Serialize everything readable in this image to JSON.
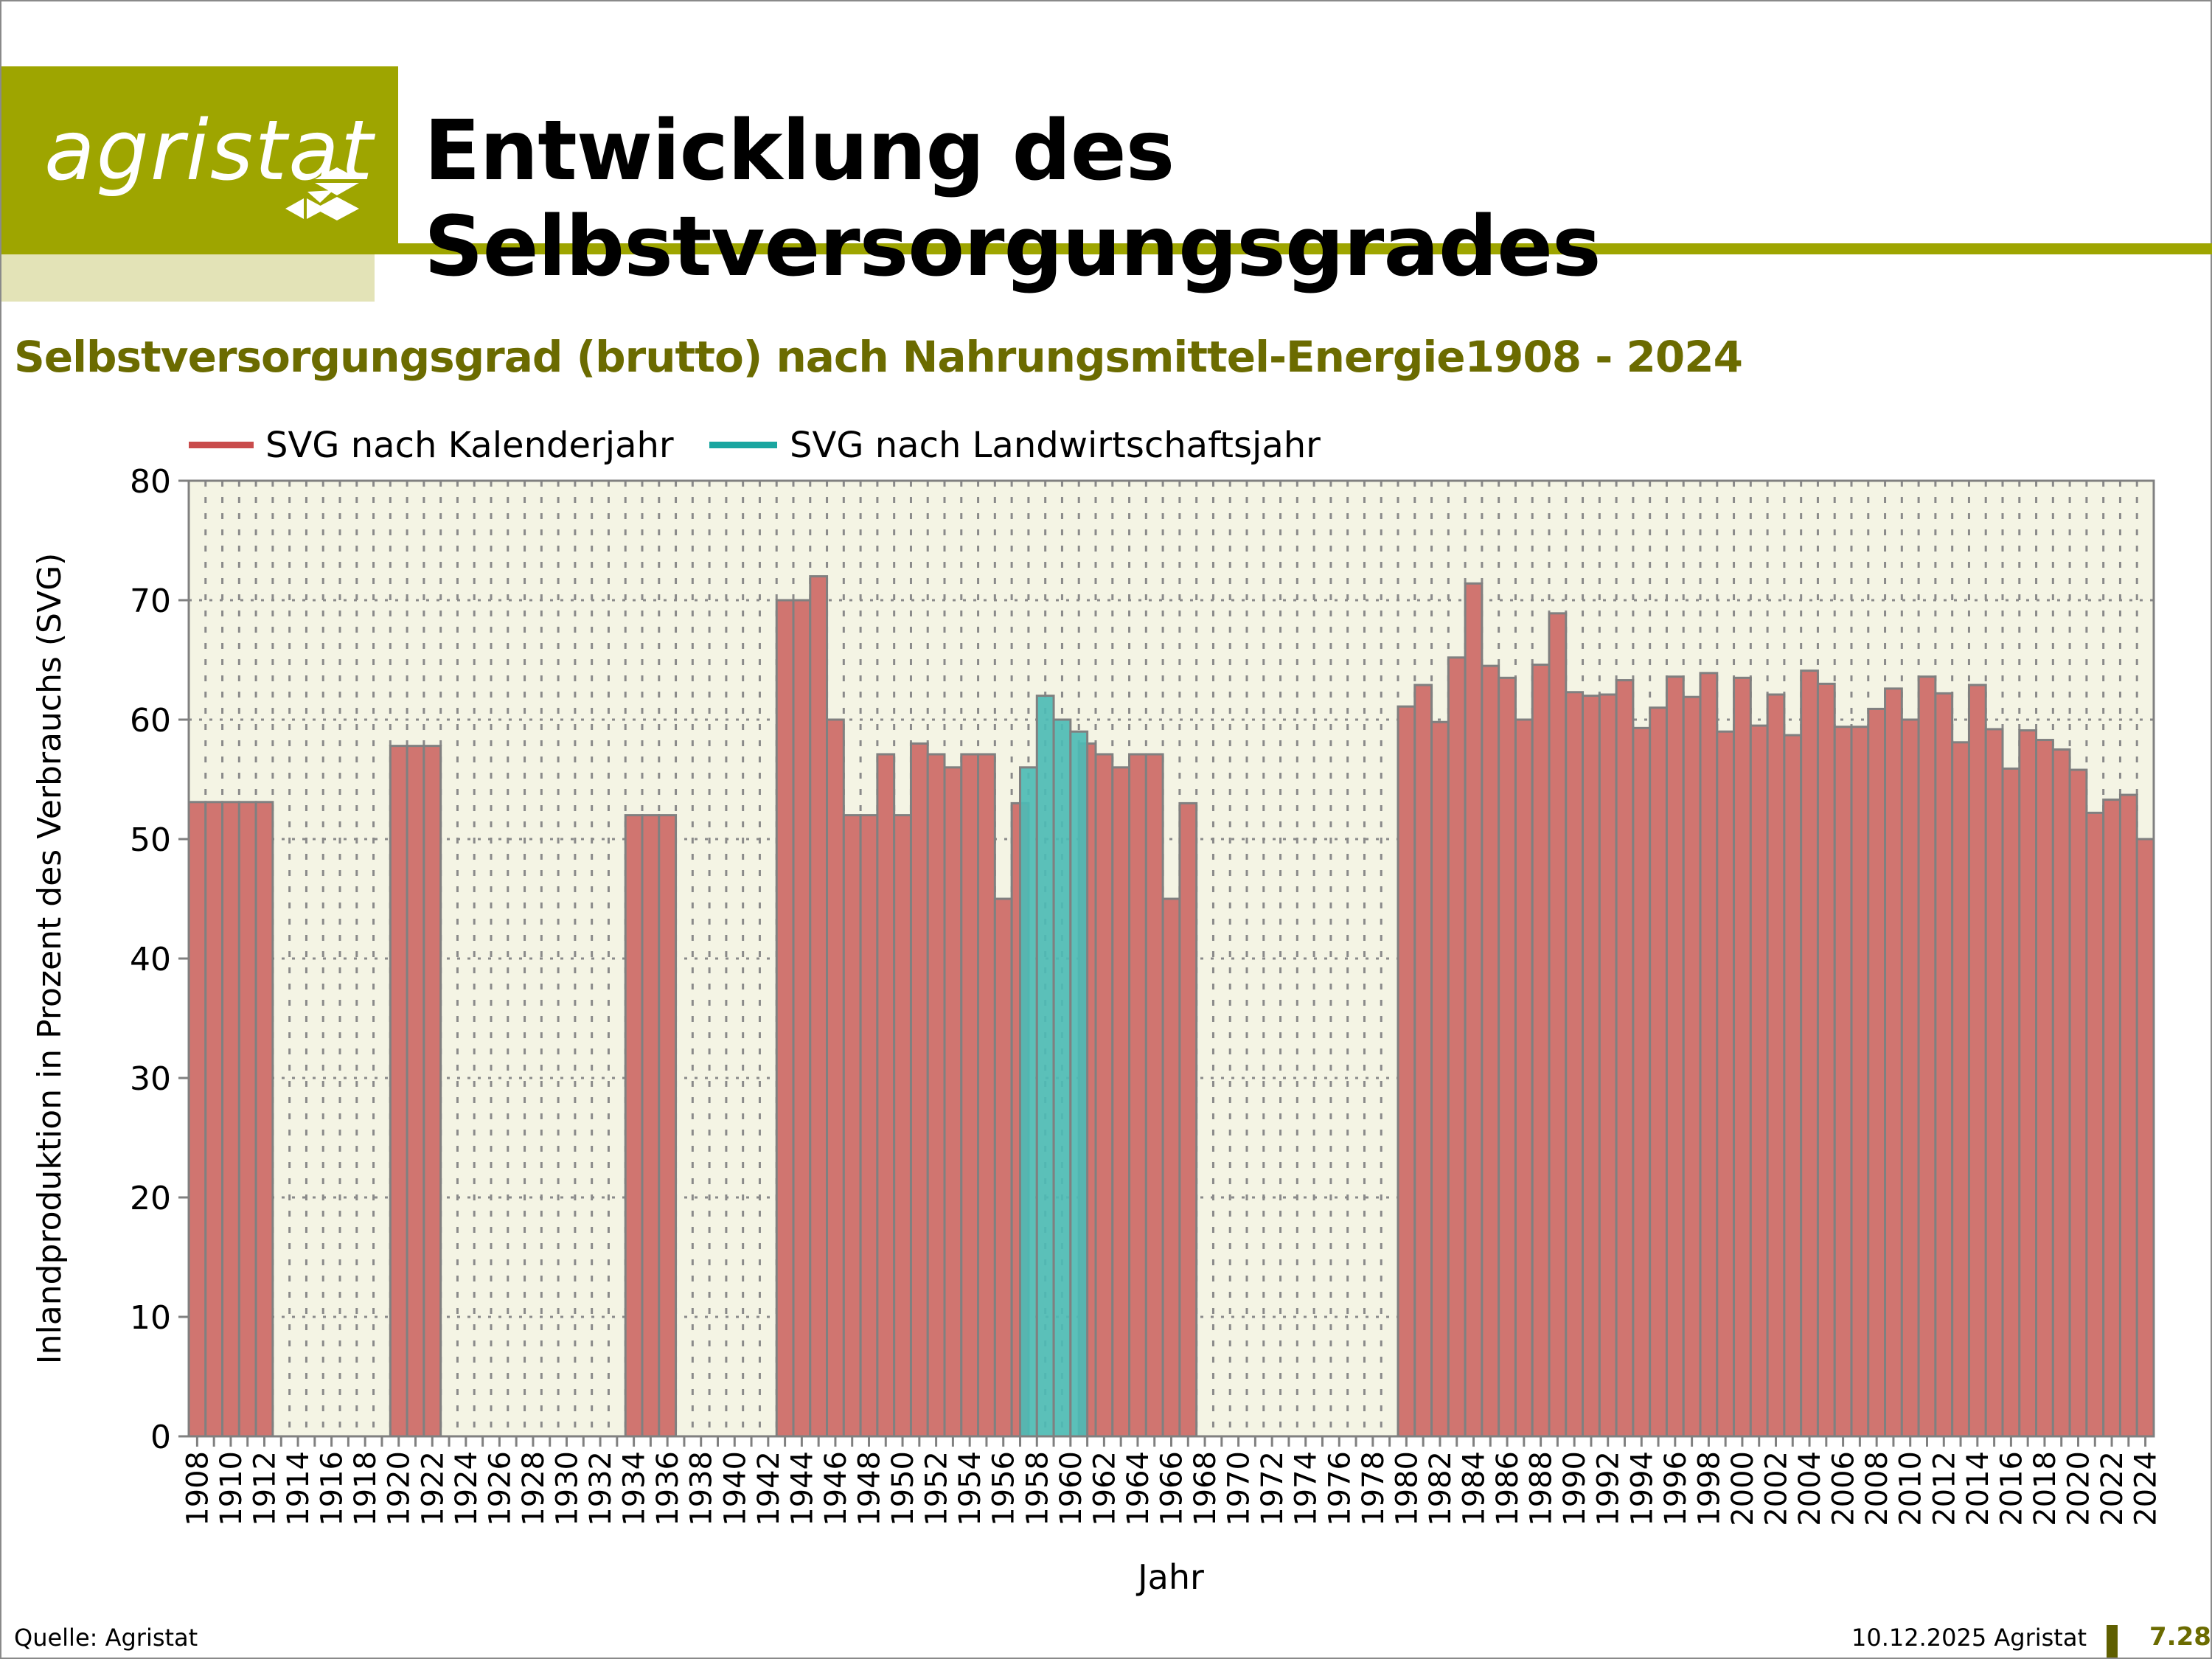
{
  "header": {
    "logo_text": "agristat",
    "title": "Entwicklung des Selbstversorgungsgrades",
    "brand_color": "#9ea500"
  },
  "footer": {
    "source": "Quelle: Agristat",
    "date": "10.12.2025 Agristat",
    "page": "7.28"
  },
  "chart_data": {
    "type": "bar",
    "title": "Selbstversorgungsgrad (brutto) nach Nahrungsmittel-Energie1908 - 2024",
    "xlabel": "Jahr",
    "ylabel": "Inlandproduktion in Prozent des Verbrauchs (SVG)",
    "ylim": [
      0,
      80
    ],
    "yticks": [
      0,
      10,
      20,
      30,
      40,
      50,
      60,
      70,
      80
    ],
    "grid": true,
    "legend_position": "top-left",
    "categories": [
      1908,
      1909,
      1910,
      1911,
      1912,
      1913,
      1914,
      1915,
      1916,
      1917,
      1918,
      1919,
      1920,
      1921,
      1922,
      1923,
      1924,
      1925,
      1926,
      1927,
      1928,
      1929,
      1930,
      1931,
      1932,
      1933,
      1934,
      1935,
      1936,
      1937,
      1938,
      1939,
      1940,
      1941,
      1942,
      1943,
      1944,
      1945,
      1946,
      1947,
      1948,
      1949,
      1950,
      1951,
      1952,
      1953,
      1954,
      1955,
      1956,
      1957,
      1958,
      1959,
      1960,
      1961,
      1962,
      1963,
      1964,
      1965,
      1966,
      1967,
      1968,
      1969,
      1970,
      1971,
      1972,
      1973,
      1974,
      1975,
      1976,
      1977,
      1978,
      1979,
      1980,
      1981,
      1982,
      1983,
      1984,
      1985,
      1986,
      1987,
      1988,
      1989,
      1990,
      1991,
      1992,
      1993,
      1994,
      1995,
      1996,
      1997,
      1998,
      1999,
      2000,
      2001,
      2002,
      2003,
      2004,
      2005,
      2006,
      2007,
      2008,
      2009,
      2010,
      2011,
      2012,
      2013,
      2014,
      2015,
      2016,
      2017,
      2018,
      2019,
      2020,
      2021,
      2022,
      2023,
      2024
    ],
    "series": [
      {
        "name": "SVG nach Kalenderjahr",
        "color": "#d07570",
        "values": [
          53.1,
          53.1,
          53.1,
          53.1,
          53.1,
          null,
          null,
          null,
          null,
          null,
          null,
          null,
          57.8,
          57.8,
          57.8,
          null,
          null,
          null,
          null,
          null,
          null,
          null,
          null,
          null,
          null,
          null,
          52,
          52,
          52,
          null,
          null,
          null,
          null,
          null,
          null,
          70,
          70,
          72,
          60,
          52,
          52,
          57.1,
          52,
          58,
          57.1,
          56,
          57.1,
          57.1,
          45,
          53,
          null,
          null,
          null,
          58,
          57.1,
          56,
          57.1,
          57.1,
          45,
          53,
          null,
          null,
          null,
          null,
          null,
          null,
          null,
          null,
          null,
          null,
          null,
          null,
          61.1,
          62.9,
          59.8,
          65.2,
          71.4,
          64.5,
          63.5,
          60.0,
          64.6,
          68.9,
          62.3,
          62.0,
          62.1,
          63.3,
          59.3,
          61.0,
          63.6,
          61.9,
          63.9,
          59.0,
          63.5,
          59.5,
          62.1,
          58.7,
          64.1,
          63.0,
          59.4,
          59.4,
          60.9,
          62.6,
          60.0,
          63.6,
          62.2,
          58.1,
          62.9,
          59.2,
          55.9,
          59.1,
          58.3,
          57.5,
          55.8,
          52.2,
          53.3,
          53.7,
          50.0
        ]
      },
      {
        "name": "SVG nach Landwirtschaftsjahr",
        "color": "#4dbbb5",
        "x": [
          1957.5,
          1958.5,
          1959.5,
          1960.5
        ],
        "values": [
          56,
          62,
          60,
          59
        ]
      }
    ]
  }
}
